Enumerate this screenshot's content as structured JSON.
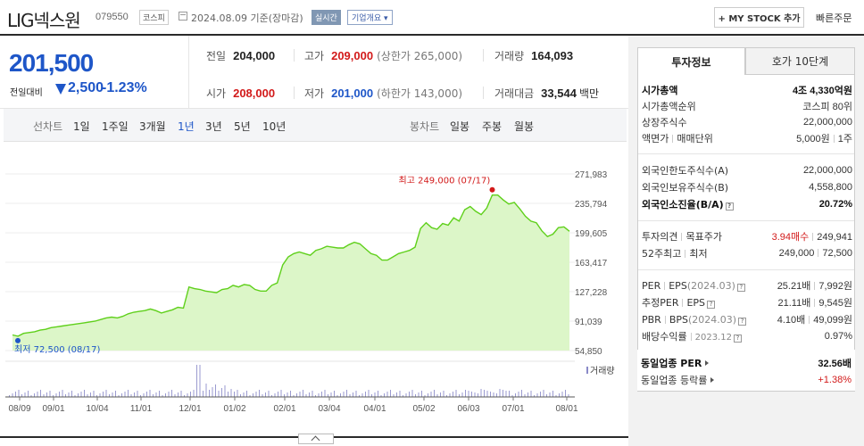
{
  "header": {
    "stock_name": "LIG넥스원",
    "stock_code": "079550",
    "market_badge": "코스피",
    "date_text": "2024.08.09 기준(장마감)",
    "realtime_badge": "실시간",
    "company_overview": "기업개요 ▾",
    "mystock_button": "+ MY STOCK 추가",
    "quick_order": "빠른주문"
  },
  "price": {
    "current": "201,500",
    "prev_label": "전일대비",
    "change": "2,500",
    "change_pct": "-1.23%",
    "colors": {
      "up": "#d21a1a",
      "down": "#1e56c8"
    }
  },
  "info": {
    "prev_close_label": "전일",
    "prev_close": "204,000",
    "high_label": "고가",
    "high": "209,000",
    "upper_limit": "(상한가 265,000)",
    "volume_label": "거래량",
    "volume": "164,093",
    "open_label": "시가",
    "open": "208,000",
    "low_label": "저가",
    "low": "201,000",
    "lower_limit": "(하한가 143,000)",
    "amount_label": "거래대금",
    "amount": "33,544",
    "amount_unit": "백만"
  },
  "chart_tabs": {
    "line_label": "선차트",
    "periods": [
      "1일",
      "1주일",
      "3개월",
      "1년",
      "3년",
      "5년",
      "10년"
    ],
    "active": "1년",
    "candle_label": "봉차트",
    "candles": [
      "일봉",
      "주봉",
      "월봉"
    ]
  },
  "chart_data": {
    "type": "area",
    "y_ticks": [
      "271,983",
      "235,794",
      "199,605",
      "163,417",
      "127,228",
      "91,039",
      "54,850"
    ],
    "ylim": [
      54850,
      271983
    ],
    "x_ticks": [
      "08/09",
      "09/01",
      "10/04",
      "11/01",
      "12/01",
      "01/02",
      "02/01",
      "03/04",
      "04/01",
      "05/02",
      "06/03",
      "07/01",
      "08/01"
    ],
    "values": [
      74000,
      72500,
      76000,
      77000,
      78000,
      80000,
      81000,
      83000,
      84000,
      85000,
      86000,
      87000,
      88000,
      89000,
      90000,
      91000,
      93000,
      95000,
      96000,
      95000,
      97000,
      100000,
      102000,
      103000,
      104000,
      106000,
      104000,
      101000,
      103000,
      105000,
      108000,
      107000,
      133000,
      131000,
      130000,
      128000,
      127000,
      126000,
      130000,
      131000,
      135000,
      133000,
      136000,
      135000,
      130000,
      128000,
      128000,
      135000,
      138000,
      160000,
      170000,
      174000,
      176000,
      174000,
      172000,
      178000,
      180000,
      183000,
      182000,
      181000,
      181000,
      185000,
      188000,
      186000,
      180000,
      174000,
      172000,
      166000,
      166000,
      170000,
      174000,
      176000,
      178000,
      182000,
      205000,
      212000,
      206000,
      204000,
      211000,
      209000,
      218000,
      214000,
      228000,
      232000,
      226000,
      222000,
      230000,
      246000,
      246000,
      240000,
      235000,
      237000,
      229000,
      220000,
      214000,
      212000,
      202000,
      195000,
      198000,
      206000,
      207000,
      201500
    ],
    "max_label": "최고 249,000 (07/17)",
    "min_label": "최저 72,500 (08/17)",
    "volume_label": "거래량",
    "colors": {
      "line": "#5fd01b",
      "fill": "#dcf6c8",
      "max_dot": "#d21a1a",
      "min_dot": "#1e56c8"
    }
  },
  "right_panel": {
    "tab_active": "투자정보",
    "tab_other": "호가 10단계",
    "market_cap_label": "시가총액",
    "market_cap": "4조 4,330억원",
    "market_cap_rank_label": "시가총액순위",
    "market_cap_rank": "코스피 80위",
    "shares_label": "상장주식수",
    "shares": "22,000,000",
    "par_label": "액면가",
    "trade_unit_label": "매매단위",
    "par": "5,000원",
    "trade_unit": "1주",
    "foreign_limit_label": "외국인한도주식수(A)",
    "foreign_limit": "22,000,000",
    "foreign_hold_label": "외국인보유주식수(B)",
    "foreign_hold": "4,558,800",
    "foreign_ratio_label": "외국인소진율(B/A)",
    "foreign_ratio": "20.72%",
    "opinion_label": "투자의견",
    "target_label": "목표주가",
    "opinion": "3.94매수",
    "target": "249,941",
    "w52_high_label": "52주최고",
    "w52_low_label": "최저",
    "w52_high": "249,000",
    "w52_low": "72,500",
    "per_label": "PER",
    "eps_label": "EPS",
    "eps_year": "(2024.03)",
    "per": "25.21배",
    "eps": "7,992원",
    "est_per_label": "추정PER",
    "est_eps_label": "EPS",
    "est_per": "21.11배",
    "est_eps": "9,545원",
    "pbr_label": "PBR",
    "bps_label": "BPS",
    "bps_year": "(2024.03)",
    "pbr": "4.10배",
    "bps": "49,099원",
    "div_label": "배당수익률",
    "div_year": "2023.12",
    "div": "0.97%",
    "peer_per_label": "동일업종 PER",
    "peer_per": "32.56배",
    "peer_change_label": "동일업종 등락률",
    "peer_change": "+1.38%"
  }
}
